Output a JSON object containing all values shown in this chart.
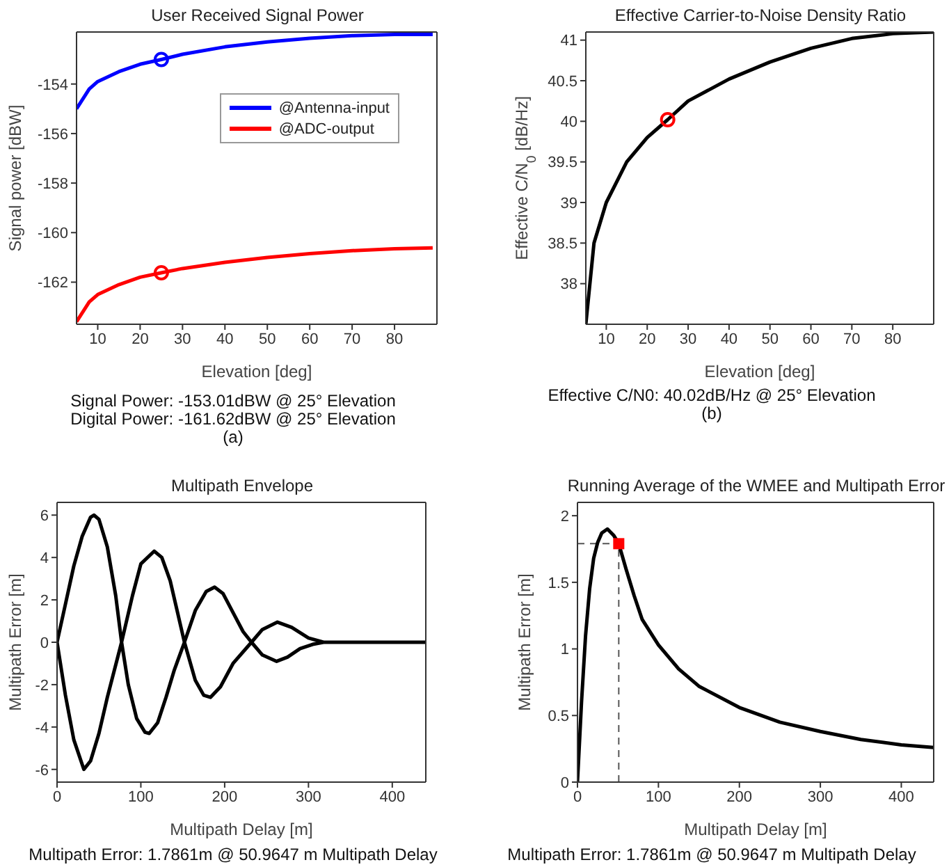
{
  "chart_data": [
    {
      "type": "line",
      "title": "User Received Signal Power",
      "xlabel": "Elevation [deg]",
      "ylabel": "Signal power [dBW]",
      "xlim": [
        5,
        90
      ],
      "xticks": [
        10,
        20,
        30,
        40,
        50,
        60,
        70,
        80
      ],
      "ylim": [
        -163.7,
        -151.9
      ],
      "yticks": [
        -162,
        -160,
        -158,
        -156,
        -154
      ],
      "grid": false,
      "legend": "top right",
      "series": [
        {
          "name": "@Antenna-input",
          "color": "#0000ff",
          "x": [
            5,
            8,
            10,
            15,
            20,
            25,
            30,
            40,
            50,
            60,
            70,
            80,
            89
          ],
          "values": [
            -155.0,
            -154.2,
            -153.9,
            -153.5,
            -153.2,
            -153.01,
            -152.8,
            -152.5,
            -152.3,
            -152.15,
            -152.05,
            -152.0,
            -152.0
          ]
        },
        {
          "name": "@ADC-output",
          "color": "#ff0000",
          "x": [
            5,
            8,
            10,
            15,
            20,
            25,
            30,
            40,
            50,
            60,
            70,
            80,
            89
          ],
          "values": [
            -163.6,
            -162.8,
            -162.5,
            -162.1,
            -161.8,
            -161.62,
            -161.45,
            -161.2,
            -161.0,
            -160.85,
            -160.73,
            -160.65,
            -160.62
          ]
        },
        {
          "type": "scatter",
          "marker": "circle",
          "color": "#0000ff",
          "x": [
            25
          ],
          "values": [
            -153.01
          ]
        },
        {
          "type": "scatter",
          "marker": "circle",
          "color": "#ff0000",
          "x": [
            25
          ],
          "values": [
            -161.62
          ]
        }
      ],
      "annotations": [
        "Signal Power: -153.01dBW @ 25° Elevation",
        "Digital Power: -161.62dBW @ 25° Elevation",
        "(a)"
      ]
    },
    {
      "type": "line",
      "title": "Effective Carrier-to-Noise Density Ratio",
      "xlabel": "Elevation [deg]",
      "ylabel": "Effective C/N$_{0}$ [dB/Hz]",
      "xlim": [
        5,
        90
      ],
      "xticks": [
        10,
        20,
        30,
        40,
        50,
        60,
        70,
        80
      ],
      "ylim": [
        37.5,
        41.1
      ],
      "yticks": [
        38,
        38.5,
        39,
        39.5,
        40,
        40.5,
        41
      ],
      "grid": false,
      "series": [
        {
          "color": "#000000",
          "x": [
            5,
            7,
            10,
            15,
            20,
            25,
            30,
            40,
            50,
            60,
            70,
            80,
            90
          ],
          "values": [
            37.5,
            38.5,
            39.0,
            39.5,
            39.8,
            40.02,
            40.25,
            40.52,
            40.73,
            40.9,
            41.02,
            41.08,
            41.1
          ]
        },
        {
          "type": "scatter",
          "marker": "circle",
          "color": "#ff0000",
          "x": [
            25
          ],
          "values": [
            40.02
          ]
        }
      ],
      "annotations": [
        "Effective C/N0: 40.02dB/Hz @ 25° Elevation",
        "(b)"
      ]
    },
    {
      "type": "line",
      "title": "Multipath Envelope",
      "xlabel": "Multipath Delay [m]",
      "ylabel": "Multipath Error [m]",
      "xlim": [
        0,
        440
      ],
      "xticks": [
        0,
        100,
        200,
        300,
        400
      ],
      "ylim": [
        -6.6,
        6.6
      ],
      "yticks": [
        -6,
        -4,
        -2,
        0,
        2,
        4,
        6
      ],
      "grid": false,
      "series": [
        {
          "color": "#000000",
          "x": [
            0,
            10,
            20,
            30,
            40,
            44,
            50,
            60,
            70,
            77,
            85,
            95,
            105,
            110,
            120,
            130,
            140,
            152,
            165,
            178,
            188,
            198,
            210,
            222,
            232,
            245,
            262,
            275,
            290,
            305,
            318,
            440,
            null,
            0,
            10,
            20,
            32,
            40,
            50,
            60,
            77,
            90,
            100,
            116,
            125,
            135,
            152,
            165,
            175,
            183,
            195,
            210,
            232,
            245,
            263,
            280,
            300,
            318,
            440
          ],
          "values": [
            0,
            1.8,
            3.6,
            5.0,
            5.9,
            6.0,
            5.8,
            4.5,
            2.2,
            0,
            -2.0,
            -3.6,
            -4.25,
            -4.3,
            -3.8,
            -2.6,
            -1.3,
            0,
            1.5,
            2.4,
            2.6,
            2.3,
            1.4,
            0.5,
            0,
            -0.6,
            -0.9,
            -0.7,
            -0.3,
            -0.1,
            0,
            0,
            null,
            0,
            -2.5,
            -4.6,
            -6.0,
            -5.6,
            -4.3,
            -2.6,
            0,
            2.2,
            3.7,
            4.3,
            4.0,
            2.9,
            0,
            -1.8,
            -2.5,
            -2.6,
            -2.1,
            -1.0,
            0,
            0.6,
            0.95,
            0.7,
            0.2,
            0,
            0
          ]
        }
      ],
      "annotations": [
        "Multipath Error: 1.7861m @ 50.9647 m Multipath Delay"
      ]
    },
    {
      "type": "line",
      "title": "Running Average of the WMEE and Multipath Error",
      "xlabel": "Multipath Delay [m]",
      "ylabel": "Multipath Error [m]",
      "xlim": [
        0,
        440
      ],
      "xticks": [
        0,
        100,
        200,
        300,
        400
      ],
      "ylim": [
        0,
        2.1
      ],
      "yticks": [
        0,
        0.5,
        1,
        1.5,
        2
      ],
      "grid": false,
      "series": [
        {
          "color": "#000000",
          "x": [
            0,
            5,
            10,
            15,
            20,
            25,
            30,
            37,
            45,
            51,
            60,
            70,
            80,
            100,
            125,
            150,
            200,
            250,
            300,
            350,
            400,
            440
          ],
          "values": [
            0,
            0.6,
            1.1,
            1.45,
            1.68,
            1.8,
            1.87,
            1.9,
            1.85,
            1.79,
            1.6,
            1.4,
            1.22,
            1.03,
            0.85,
            0.72,
            0.56,
            0.45,
            0.38,
            0.32,
            0.28,
            0.26
          ]
        },
        {
          "type": "scatter",
          "marker": "square",
          "color": "#ff0000",
          "x": [
            51
          ],
          "values": [
            1.79
          ]
        }
      ],
      "ref_lines": [
        {
          "axis": "x",
          "value": 51,
          "color": "#555555",
          "line_style": "dashed"
        },
        {
          "axis": "y",
          "value": 1.79,
          "color": "#555555",
          "line_style": "dashed"
        }
      ],
      "annotations": [
        "Multipath Error: 1.7861m @ 50.9647 m Multipath Delay"
      ]
    }
  ]
}
